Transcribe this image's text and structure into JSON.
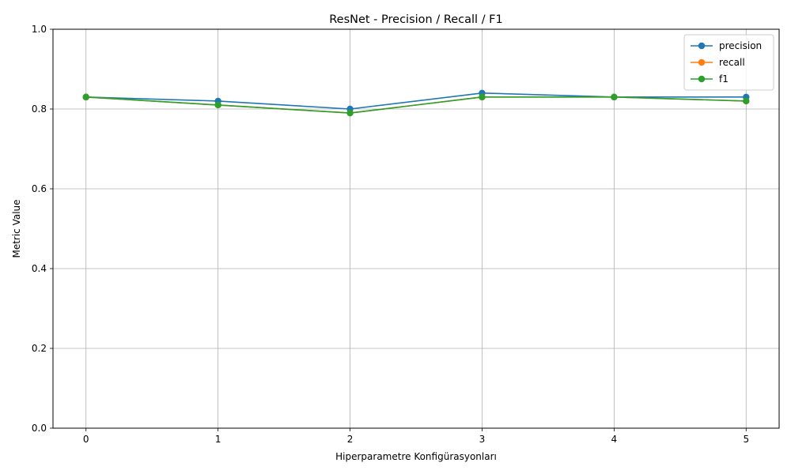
{
  "chart_data": {
    "type": "line",
    "title": "ResNet - Precision / Recall / F1",
    "xlabel": "Hiperparametre Konfigürasyonları",
    "ylabel": "Metric Value",
    "x": [
      0,
      1,
      2,
      3,
      4,
      5
    ],
    "xticks": [
      "0",
      "1",
      "2",
      "3",
      "4",
      "5"
    ],
    "xlim": [
      -0.25,
      5.25
    ],
    "ylim": [
      0.0,
      1.0
    ],
    "yticks": [
      "0.0",
      "0.2",
      "0.4",
      "0.6",
      "0.8",
      "1.0"
    ],
    "grid": true,
    "legend_position": "top-right",
    "series": [
      {
        "name": "precision",
        "color": "#1f77b4",
        "values": [
          0.83,
          0.82,
          0.8,
          0.84,
          0.83,
          0.83
        ]
      },
      {
        "name": "recall",
        "color": "#ff7f0e",
        "values": [
          0.83,
          0.81,
          0.79,
          0.83,
          0.83,
          0.82
        ]
      },
      {
        "name": "f1",
        "color": "#2ca02c",
        "values": [
          0.83,
          0.81,
          0.79,
          0.83,
          0.83,
          0.82
        ]
      }
    ]
  }
}
